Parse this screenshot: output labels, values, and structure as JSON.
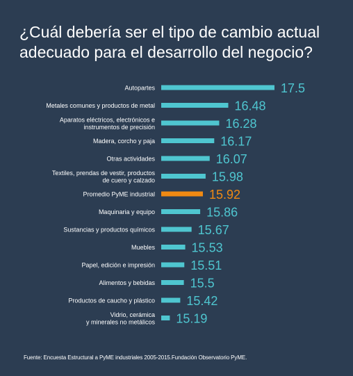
{
  "title": "¿Cuál debería ser el tipo de cambio actual adecuado para el desarrollo del negocio?",
  "source": "Fuente: Encuesta Estructural a PyME industriales 2005-2015.Fundación Observatorio PyME.",
  "colors": {
    "background": "#2c3d52",
    "bar": "#4fc6d0",
    "highlight": "#f08a13",
    "text": "#ffffff"
  },
  "chart_data": {
    "type": "bar",
    "orientation": "horizontal",
    "categories": [
      "Autopartes",
      "Metales comunes y productos de metal",
      "Aparatos eléctricos, electrónicos e\ninstrumentos de precisión",
      "Madera, corcho y paja",
      "Otras actividades",
      "Textiles, prendas de vestir, productos\nde cuero y calzado",
      "Promedio PyME industrial",
      "Maquinaria y equipo",
      "Sustancias y productos químicos",
      "Muebles",
      "Papel, edición e impresión",
      "Alimentos y bebidas",
      "Productos de caucho y plástico",
      "Vidrio, cerámica\ny minerales no metálicos"
    ],
    "values": [
      17.5,
      16.48,
      16.28,
      16.17,
      16.07,
      15.98,
      15.92,
      15.86,
      15.67,
      15.53,
      15.51,
      15.5,
      15.42,
      15.19
    ],
    "value_labels": [
      "17.5",
      "16.48",
      "16.28",
      "16.17",
      "16.07",
      "15.98",
      "15.92",
      "15.86",
      "15.67",
      "15.53",
      "15.51",
      "15.5",
      "15.42",
      "15.19"
    ],
    "highlight_category": "Promedio PyME industrial",
    "xlim": [
      15.0,
      17.5
    ],
    "title": "¿Cuál debería ser el tipo de cambio actual adecuado para el desarrollo del negocio?",
    "xlabel": "",
    "ylabel": "",
    "grid": false,
    "legend": "none"
  }
}
